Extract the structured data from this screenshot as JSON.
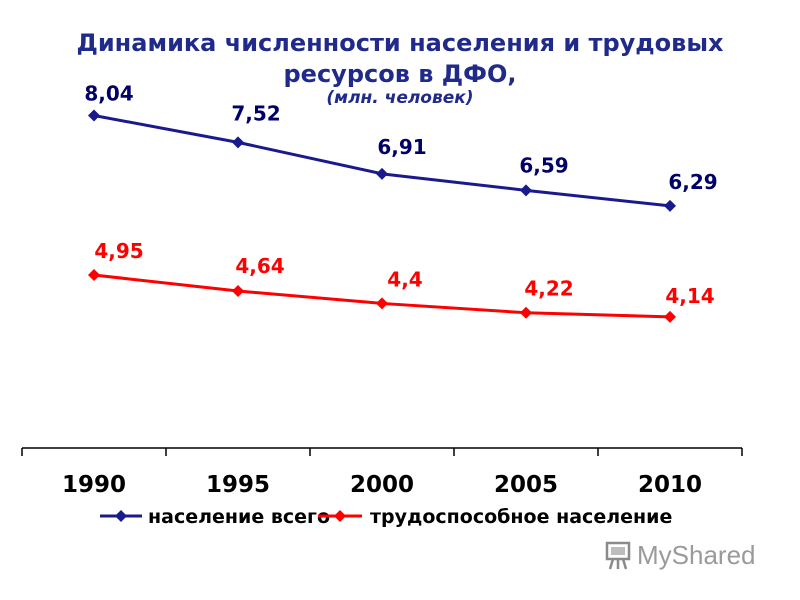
{
  "chart_data": {
    "type": "line",
    "title": "Динамика численности населения и трудовых ресурсов в ДФО,",
    "subtitle": "(млн. человек)",
    "categories": [
      "1990",
      "1995",
      "2000",
      "2005",
      "2010"
    ],
    "series": [
      {
        "name": "население всего",
        "color": "#1a1a8c",
        "values": [
          8.04,
          7.52,
          6.91,
          6.59,
          6.29
        ],
        "labels": [
          "8,04",
          "7,52",
          "6,91",
          "6,59",
          "6,29"
        ]
      },
      {
        "name": "трудоспособное население",
        "color": "#ff0000",
        "values": [
          4.95,
          4.64,
          4.4,
          4.22,
          4.14
        ],
        "labels": [
          "4,95",
          "4,64",
          "4,4",
          "4,22",
          "4,14"
        ]
      }
    ],
    "legend_position": "bottom",
    "grid": false
  },
  "title_line1": "Динамика численности населения и трудовых",
  "title_line2": "ресурсов в ДФО,",
  "watermark": "MyShared"
}
